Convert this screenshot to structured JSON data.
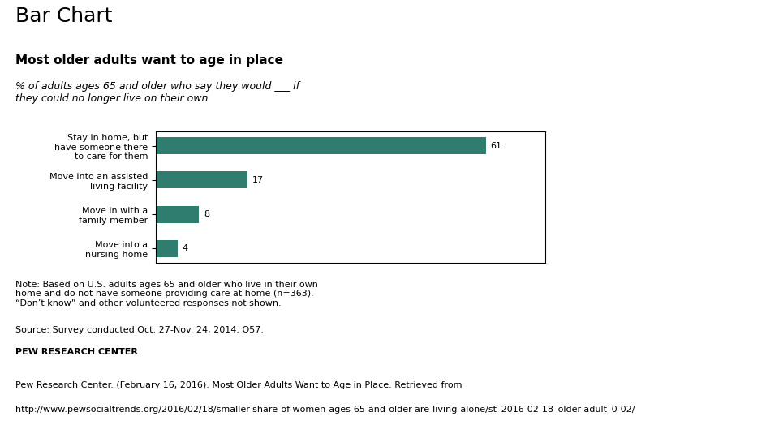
{
  "chart_data": {
    "type": "bar",
    "orientation": "horizontal",
    "title": "Most older adults want to age in place",
    "subtitle": "% of adults ages 65 and older who say they would ___ if\nthey could no longer live on their own",
    "categories": [
      "Stay in home, but\nhave someone there\nto care for them",
      "Move into an assisted\nliving facility",
      "Move in with a\nfamily member",
      "Move into a\nnursing home"
    ],
    "values": [
      61,
      17,
      8,
      4
    ],
    "color": "#2e7d6e",
    "xlim": [
      0,
      72
    ],
    "data_labels": true,
    "tick_labels": "y",
    "grid": false,
    "annotations": [
      "Bar Chart",
      "Note: Based on U.S. adults ages 65 and older who live in their own\nhome and do not have someone providing care at home (n=363).\n“Don’t know” and other volunteered responses not shown.",
      "Source: Survey conducted Oct. 27-Nov. 24, 2014. Q57.",
      "PEW RESEARCH CENTER",
      "Pew Research Center. (February 16, 2016). Most Older Adults Want to Age in Place. Retrieved from",
      "http://www.pewsocialtrends.org/2016/02/18/smaller-share-of-women-ages-65-and-older-are-living-alone/st_2016-02-18_older-adult_0-02/"
    ]
  }
}
